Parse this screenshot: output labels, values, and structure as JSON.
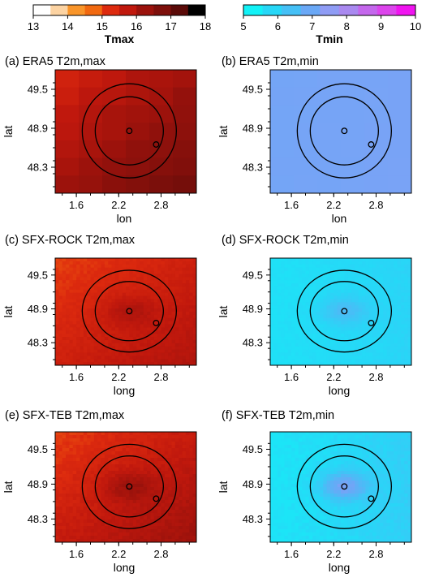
{
  "colorbars": [
    {
      "label": "Tmax",
      "ticks": [
        "13",
        "14",
        "15",
        "16",
        "17",
        "18"
      ],
      "range": [
        13,
        18
      ],
      "colors": [
        "#ffffff",
        "#fcd3a2",
        "#f9952a",
        "#f16910",
        "#dd2a0e",
        "#c0180d",
        "#9b120c",
        "#7d0f0b",
        "#5a0a08",
        "#000000"
      ]
    },
    {
      "label": "Tmin",
      "ticks": [
        "5",
        "6",
        "7",
        "8",
        "9",
        "10"
      ],
      "range": [
        5,
        10
      ],
      "colors": [
        "#12f2f7",
        "#27d7f7",
        "#45c0f6",
        "#6aa8f6",
        "#8f9cf5",
        "#a989f0",
        "#c467ec",
        "#dc45ec",
        "#f014f0"
      ]
    }
  ],
  "panels": [
    {
      "title": "(a) ERA5 T2m,max",
      "xlabel": "lon",
      "ylabel": "lat",
      "xticks": [
        "1.6",
        "2.2",
        "2.8"
      ],
      "yticks": [
        "49.5",
        "48.9",
        "48.3"
      ]
    },
    {
      "title": "(b) ERA5 T2m,min",
      "xlabel": "lon",
      "ylabel": "lat",
      "xticks": [
        "1.6",
        "2.2",
        "2.8"
      ],
      "yticks": [
        "49.5",
        "48.9",
        "48.3"
      ]
    },
    {
      "title": "(c) SFX-ROCK T2m,max",
      "xlabel": "long",
      "ylabel": "lat",
      "xticks": [
        "1.6",
        "2.2",
        "2.8"
      ],
      "yticks": [
        "49.5",
        "48.9",
        "48.3"
      ]
    },
    {
      "title": "(d) SFX-ROCK T2m,min",
      "xlabel": "long",
      "ylabel": "lat",
      "xticks": [
        "1.6",
        "2.2",
        "2.8"
      ],
      "yticks": [
        "49.5",
        "48.9",
        "48.3"
      ]
    },
    {
      "title": "(e) SFX-TEB T2m,max",
      "xlabel": "long",
      "ylabel": "lat",
      "xticks": [
        "1.6",
        "2.2",
        "2.8"
      ],
      "yticks": [
        "49.5",
        "48.9",
        "48.3"
      ]
    },
    {
      "title": "(f) SFX-TEB T2m,min",
      "xlabel": "long",
      "ylabel": "lat",
      "xticks": [
        "1.6",
        "2.2",
        "2.8"
      ],
      "yticks": [
        "49.5",
        "48.9",
        "48.3"
      ]
    }
  ],
  "chart_data": {
    "type": "heatmap",
    "x_range": [
      1.3,
      3.3
    ],
    "y_range": [
      47.9,
      49.8
    ],
    "map_markers": [
      {
        "name": "center",
        "lon": 2.35,
        "lat": 48.86
      },
      {
        "name": "station",
        "lon": 2.73,
        "lat": 48.65
      }
    ],
    "circles_center": {
      "lon": 2.35,
      "lat": 48.86
    },
    "panel_variables": [
      "Tmax",
      "Tmin",
      "Tmax",
      "Tmin",
      "Tmax",
      "Tmin"
    ],
    "panel_value_ranges": [
      [
        15.4,
        17.9
      ],
      [
        6.9,
        7.4
      ],
      [
        15.0,
        16.5
      ],
      [
        5.4,
        6.6
      ],
      [
        15.0,
        16.9
      ],
      [
        5.3,
        7.5
      ]
    ]
  }
}
